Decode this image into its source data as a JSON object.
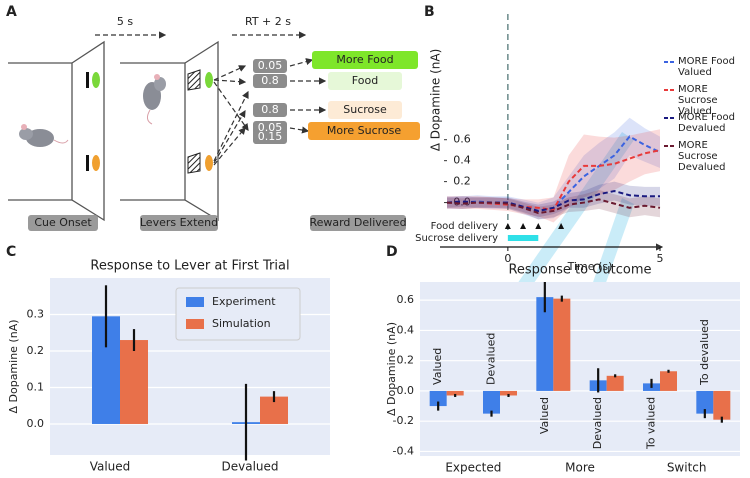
{
  "panel_labels": [
    "A",
    "B",
    "C",
    "D"
  ],
  "diagram": {
    "intervals": [
      "5 s",
      "RT + 2 s"
    ],
    "probabilities": [
      "0.05",
      "0.8",
      "0.15",
      "0.8",
      "0.05"
    ],
    "outcomes": [
      "More Food",
      "Food",
      "Sucrose",
      "More Sucrose"
    ],
    "stages": [
      "Cue Onset",
      "Levers Extend",
      "Reward Delivered"
    ]
  },
  "chart_data": [
    {
      "type": "line",
      "y_label": "Δ Dopamine (nA)",
      "x_label": "Time (s)",
      "x": [
        -2,
        -1.5,
        -1,
        -0.5,
        0,
        0.5,
        1,
        1.5,
        2,
        2.5,
        3,
        3.5,
        4,
        4.5,
        5
      ],
      "xlim": [
        -2,
        5
      ],
      "xticks": [
        0,
        5
      ],
      "ylim": [
        -0.3,
        1.8
      ],
      "yticks": [
        {
          "value": 0,
          "label": "0.0"
        },
        0.2,
        0.4,
        0.6
      ],
      "food_delivery_label": "Food delivery",
      "food_delivery": [
        0,
        0.5,
        1,
        1.75
      ],
      "sucrose_delivery_label": "Sucrose delivery",
      "sucrose_delivery": [
        0,
        1
      ],
      "series": [
        {
          "name": "MORE Food Valued",
          "color": "#3b63e0",
          "values": [
            0.0,
            0.0,
            0.01,
            0.0,
            0.0,
            -0.04,
            -0.08,
            -0.05,
            0.1,
            0.25,
            0.35,
            0.45,
            0.63,
            0.55,
            0.48
          ],
          "errors": [
            0.06,
            0.06,
            0.06,
            0.06,
            0.06,
            0.07,
            0.08,
            0.1,
            0.15,
            0.2,
            0.22,
            0.22,
            0.18,
            0.16,
            0.15
          ]
        },
        {
          "name": "MORE Sucrose Valued",
          "color": "#e83a3a",
          "values": [
            0.0,
            0.0,
            0.0,
            -0.01,
            -0.02,
            -0.04,
            -0.05,
            -0.07,
            0.2,
            0.35,
            0.35,
            0.37,
            0.42,
            0.47,
            0.5
          ],
          "errors": [
            0.06,
            0.06,
            0.06,
            0.06,
            0.06,
            0.07,
            0.08,
            0.12,
            0.25,
            0.3,
            0.28,
            0.25,
            0.22,
            0.2,
            0.2
          ]
        },
        {
          "name": "MORE Food Devalued",
          "color": "#1a1a80",
          "values": [
            0.0,
            0.01,
            0.0,
            0.0,
            0.0,
            -0.04,
            -0.08,
            -0.05,
            0.02,
            0.03,
            0.08,
            0.11,
            0.07,
            0.06,
            0.06
          ],
          "errors": [
            0.05,
            0.05,
            0.05,
            0.05,
            0.05,
            0.05,
            0.06,
            0.06,
            0.07,
            0.08,
            0.09,
            0.09,
            0.09,
            0.09,
            0.09
          ]
        },
        {
          "name": "MORE Sucrose Devalued",
          "color": "#6a1a30",
          "values": [
            0.0,
            -0.01,
            0.0,
            0.0,
            -0.01,
            -0.05,
            -0.1,
            -0.08,
            -0.02,
            0.0,
            0.03,
            -0.01,
            -0.05,
            -0.03,
            -0.05
          ],
          "errors": [
            0.05,
            0.05,
            0.05,
            0.05,
            0.05,
            0.05,
            0.06,
            0.06,
            0.07,
            0.08,
            0.09,
            0.09,
            0.09,
            0.09,
            0.09
          ]
        }
      ]
    },
    {
      "type": "bar",
      "title": "Response to Lever at First Trial",
      "y_label": "Δ Dopamine (nA)",
      "categories": [
        "Valued",
        "Devalued"
      ],
      "ylim": [
        -0.085,
        0.4
      ],
      "yticks": [
        {
          "value": 0,
          "label": "0.0"
        },
        0.1,
        0.2,
        0.3
      ],
      "grid": true,
      "series": [
        {
          "name": "Experiment",
          "color": "#3f7fe8",
          "values": [
            0.295,
            0.005
          ],
          "errors": [
            0.085,
            0.105
          ]
        },
        {
          "name": "Simulation",
          "color": "#e8704a",
          "values": [
            0.23,
            0.075
          ],
          "errors": [
            0.03,
            0.015
          ]
        }
      ]
    },
    {
      "type": "bar",
      "title": "Response to Outcome",
      "y_label": "Δ Dopamine (nA)",
      "categories": [
        "Valued",
        "Devalued",
        "Valued",
        "Devalued",
        "To valued",
        "To devalued"
      ],
      "groups": [
        "Expected",
        "More",
        "Switch"
      ],
      "ylim": [
        -0.43,
        0.72
      ],
      "yticks": [
        -0.4,
        -0.2,
        {
          "value": 0,
          "label": "0.0"
        },
        0.2,
        0.4,
        0.6
      ],
      "grid": true,
      "series": [
        {
          "name": "Experiment",
          "color": "#3f7fe8",
          "values": [
            -0.1,
            -0.15,
            0.62,
            0.07,
            0.05,
            -0.15
          ],
          "errors": [
            0.03,
            0.02,
            0.1,
            0.08,
            0.03,
            0.03
          ]
        },
        {
          "name": "Simulation",
          "color": "#e8704a",
          "values": [
            -0.03,
            -0.03,
            0.61,
            0.1,
            0.13,
            -0.19
          ],
          "errors": [
            0.01,
            0.01,
            0.02,
            0.01,
            0.01,
            0.02
          ]
        }
      ]
    }
  ]
}
